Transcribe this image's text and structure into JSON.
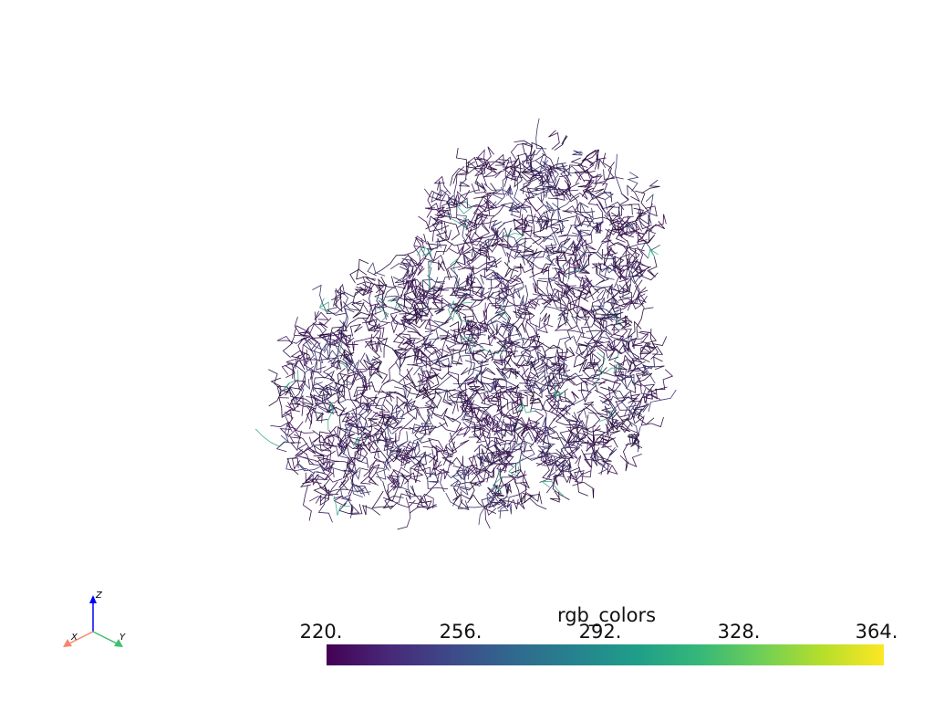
{
  "scene": {
    "object": "molecule-wireframe",
    "background": "#ffffff"
  },
  "colorbar": {
    "title": "rgb_colors",
    "ticks": [
      "220.",
      "256.",
      "292.",
      "328.",
      "364."
    ],
    "range": [
      220,
      364
    ],
    "colormap": "viridis"
  },
  "axes_widget": {
    "x_label": "X",
    "y_label": "Y",
    "z_label": "Z",
    "x_color": "#f4866a",
    "y_color": "#3fbf6f",
    "z_color": "#0000ff"
  }
}
